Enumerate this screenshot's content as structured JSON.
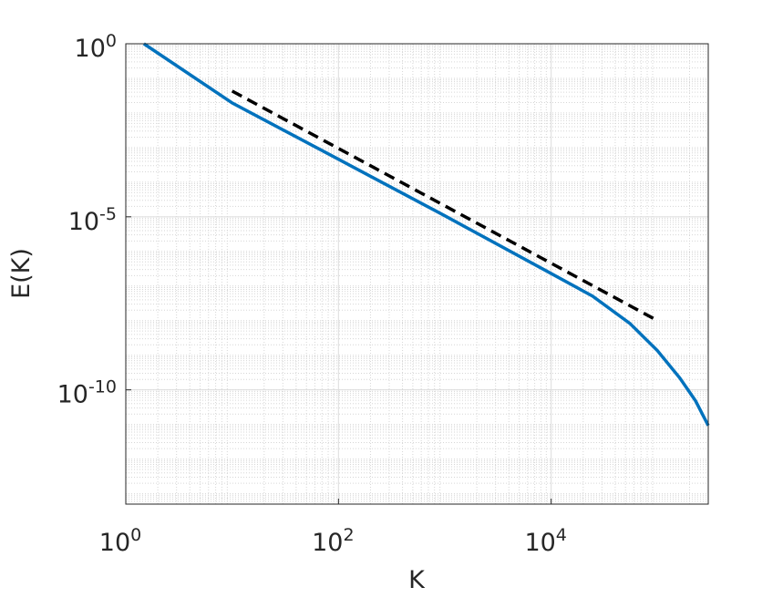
{
  "chart_data": {
    "type": "line",
    "xlabel": "K",
    "ylabel": "E(K)",
    "xscale": "log",
    "yscale": "log",
    "xlim": [
      1,
      300000
    ],
    "ylim": [
      5e-14,
      1
    ],
    "xticks": [
      {
        "value": 1,
        "label": "10^0"
      },
      {
        "value": 100,
        "label": "10^2"
      },
      {
        "value": 10000,
        "label": "10^4"
      }
    ],
    "yticks": [
      {
        "value": 1e-10,
        "label": "10^-10"
      },
      {
        "value": 1e-05,
        "label": "10^-5"
      },
      {
        "value": 1,
        "label": "10^0"
      }
    ],
    "grid": true,
    "minor_grid": true,
    "series": [
      {
        "color": "#0072bd",
        "line_style": "solid",
        "x": [
          1.48,
          10,
          100,
          1000,
          10000,
          24500,
          55000,
          100000,
          162000,
          228000,
          300000
        ],
        "values": [
          1,
          0.0195,
          0.00046,
          1.07e-05,
          2.3e-07,
          5.1e-08,
          8.3e-09,
          1.35e-09,
          2.2e-10,
          4.8e-11,
          9.3e-12
        ]
      },
      {
        "color": "#000000",
        "line_style": "dashed",
        "x": [
          10,
          100000
        ],
        "values": [
          0.043,
          1e-08
        ]
      }
    ]
  }
}
